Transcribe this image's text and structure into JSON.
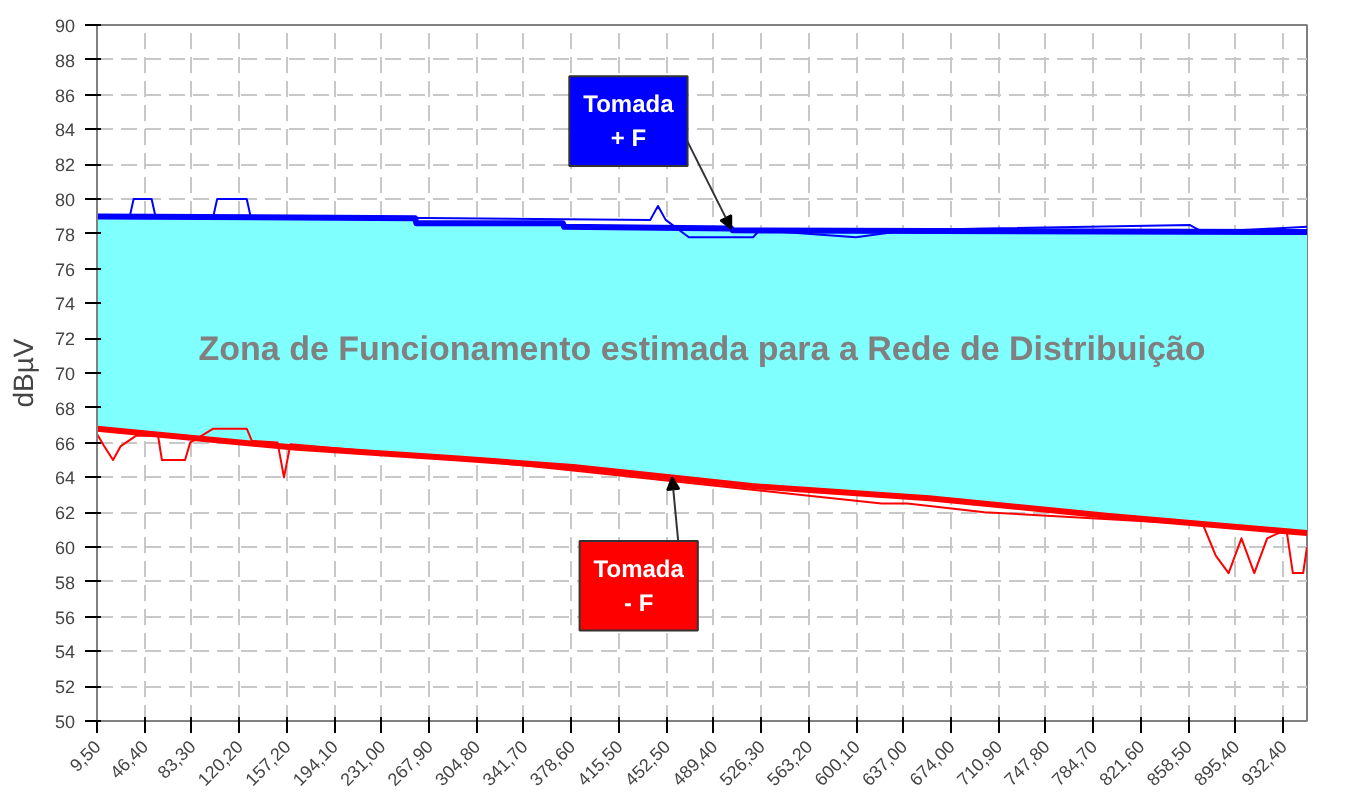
{
  "chart_data": {
    "type": "line",
    "ylabel": "dBµV",
    "xlim": [
      9.5,
      951
    ],
    "xticks": [
      {
        "value": 9.5,
        "label": "9,50"
      },
      {
        "value": 46.4,
        "label": "46,40"
      },
      {
        "value": 83.3,
        "label": "83,30"
      },
      {
        "value": 120.2,
        "label": "120,20"
      },
      {
        "value": 157.2,
        "label": "157,20"
      },
      {
        "value": 194.1,
        "label": "194,10"
      },
      {
        "value": 231.0,
        "label": "231,00"
      },
      {
        "value": 267.9,
        "label": "267,90"
      },
      {
        "value": 304.8,
        "label": "304,80"
      },
      {
        "value": 341.7,
        "label": "341,70"
      },
      {
        "value": 378.6,
        "label": "378,60"
      },
      {
        "value": 415.5,
        "label": "415,50"
      },
      {
        "value": 452.5,
        "label": "452,50"
      },
      {
        "value": 489.4,
        "label": "489,40"
      },
      {
        "value": 526.3,
        "label": "526,30"
      },
      {
        "value": 563.2,
        "label": "563,20"
      },
      {
        "value": 600.1,
        "label": "600,10"
      },
      {
        "value": 637.0,
        "label": "637,00"
      },
      {
        "value": 674.0,
        "label": "674,00"
      },
      {
        "value": 710.9,
        "label": "710,90"
      },
      {
        "value": 747.8,
        "label": "747,80"
      },
      {
        "value": 784.7,
        "label": "784,70"
      },
      {
        "value": 821.6,
        "label": "821,60"
      },
      {
        "value": 858.5,
        "label": "858,50"
      },
      {
        "value": 895.4,
        "label": "895,40"
      },
      {
        "value": 932.4,
        "label": "932,40"
      }
    ],
    "ylim": [
      50,
      90
    ],
    "yticks": [
      50,
      52,
      54,
      56,
      58,
      60,
      62,
      64,
      66,
      68,
      70,
      72,
      74,
      76,
      78,
      80,
      82,
      84,
      86,
      88,
      90
    ],
    "grid": true,
    "series": [
      {
        "type": "area",
        "color": "#80ffff",
        "x": [
          9.5,
          257,
          258,
          372,
          373,
          503,
          504,
          951
        ],
        "values": [
          79.0,
          78.9,
          78.6,
          78.6,
          78.4,
          78.3,
          78.2,
          78.1
        ]
      },
      {
        "color": "#ff0000",
        "x": [
          9.5,
          165,
          288,
          380,
          457,
          519,
          657,
          795,
          951
        ],
        "values": [
          66.8,
          65.7,
          65.1,
          64.6,
          64.0,
          63.5,
          62.8,
          61.8,
          60.8
        ]
      },
      {
        "color": "#0000ff",
        "x": [
          9.5,
          35,
          38,
          52,
          55,
          100,
          103,
          126,
          129,
          440,
          446,
          452,
          470,
          520,
          525,
          600,
          640,
          700,
          860,
          870,
          951
        ],
        "values": [
          79.0,
          79.0,
          80,
          80,
          79.0,
          79.0,
          80,
          80,
          79.0,
          78.8,
          79.6,
          78.8,
          77.8,
          77.8,
          78.2,
          77.8,
          78.2,
          78.3,
          78.5,
          78.1,
          78.4
        ]
      },
      {
        "color": "#ff0000",
        "x": [
          9.5,
          15,
          22,
          28,
          40,
          57,
          60,
          78,
          82,
          100,
          126,
          130,
          150,
          155,
          160,
          300,
          380,
          620,
          640,
          700,
          870,
          880,
          890,
          900,
          910,
          920,
          935,
          940,
          948,
          951
        ],
        "values": [
          66.5,
          65.8,
          65.0,
          65.8,
          66.4,
          66.4,
          65.0,
          65.0,
          66.0,
          66.8,
          66.8,
          66.1,
          66.0,
          64.0,
          65.9,
          65.0,
          64.4,
          62.5,
          62.5,
          62.0,
          61.3,
          59.5,
          58.5,
          60.5,
          58.5,
          60.5,
          61.0,
          58.5,
          58.5,
          60.0
        ]
      }
    ],
    "annotations": [
      "Zona de Funcionamento estimada para a Rede de Distribuição",
      {
        "text": "Tomada + F",
        "x": 503,
        "y": 78.3
      },
      {
        "text": "Tomada - F",
        "x": 457,
        "y": 64.0
      }
    ]
  }
}
